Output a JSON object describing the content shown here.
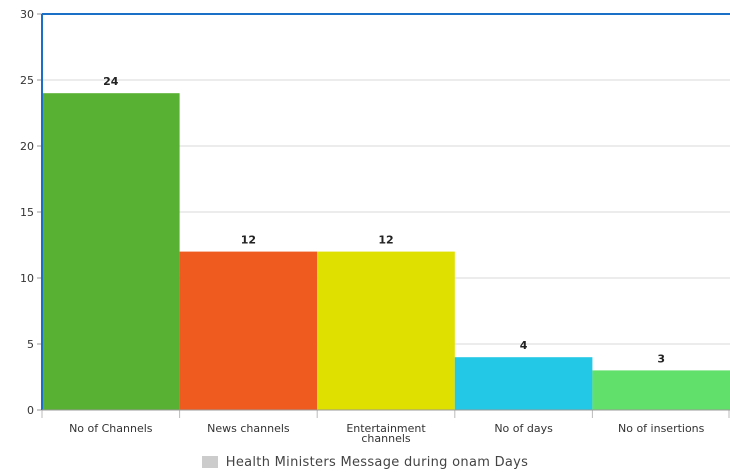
{
  "chart_data": {
    "type": "bar",
    "categories": [
      "No of Channels",
      "News channels",
      "Entertainment channels",
      "No of days",
      "No of insertions"
    ],
    "category_lines": [
      [
        "No of Channels"
      ],
      [
        "News channels"
      ],
      [
        "Entertainment",
        "channels"
      ],
      [
        "No of days"
      ],
      [
        "No of insertions"
      ]
    ],
    "series": [
      {
        "name": "Health Ministers Message during onam Days",
        "values": [
          24,
          12,
          12,
          4,
          3
        ],
        "colors": [
          "#58b133",
          "#ef5a1e",
          "#dfdf00",
          "#22c8e5",
          "#62e06c"
        ]
      }
    ],
    "ylim": [
      0,
      30
    ],
    "yticks": [
      0,
      5,
      10,
      15,
      20,
      25,
      30
    ],
    "grid": true,
    "legend_position": "bottom-center",
    "legend_swatch_color": "#cccccc",
    "axis_color": "#1a6fc7"
  }
}
